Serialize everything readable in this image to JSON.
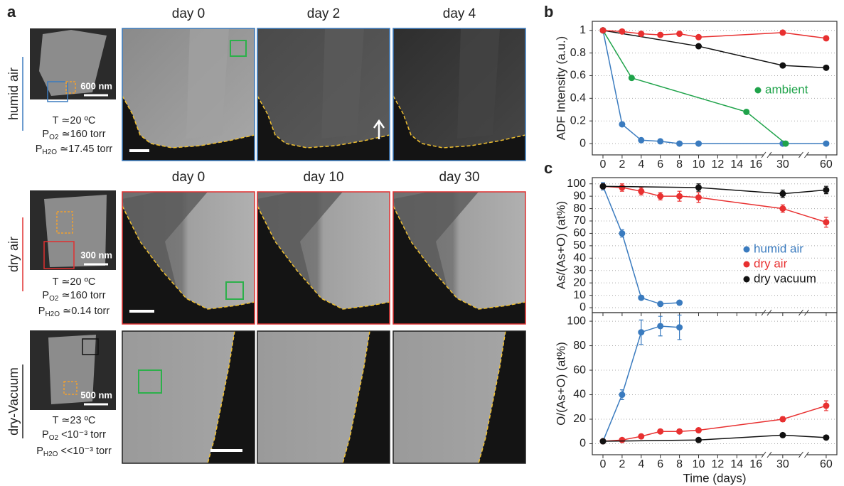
{
  "panel_a": {
    "panel_label": "a",
    "rows": [
      {
        "label": "humid air",
        "color": "#3a7bbf",
        "scale_bar": "600 nm",
        "conditions": [
          {
            "text": "T ≃20 ºC"
          },
          {
            "text": "P",
            "sub": "O2",
            "rest": " ≃160 torr"
          },
          {
            "text": "P",
            "sub": "H2O",
            "rest": " ≃17.45 torr"
          }
        ],
        "days": [
          "day 0",
          "day 2",
          "day 4"
        ]
      },
      {
        "label": "dry air",
        "color": "#e03030",
        "scale_bar": "300 nm",
        "conditions": [
          {
            "text": "T ≃20 ºC"
          },
          {
            "text": "P",
            "sub": "O2",
            "rest": " ≃160 torr"
          },
          {
            "text": "P",
            "sub": "H2O",
            "rest": " ≃0.14 torr"
          }
        ],
        "days": [
          "day 0",
          "day 10",
          "day 30"
        ]
      },
      {
        "label": "dry-Vacuum",
        "color": "#222222",
        "scale_bar": "500 nm",
        "conditions": [
          {
            "text": "T ≃23 ºC"
          },
          {
            "text": "P",
            "sub": "O2",
            "rest": " <10⁻³ torr"
          },
          {
            "text": "P",
            "sub": "H2O",
            "rest": " <<10⁻³ torr"
          }
        ]
      }
    ]
  },
  "chart_data": [
    {
      "type": "line",
      "panel_label": "b",
      "ylabel": "ADF Intensity (a.u.)",
      "xlim": [
        -1.1,
        67
      ],
      "xticks": [
        0,
        2,
        4,
        6,
        8,
        10,
        12,
        14,
        16,
        30,
        60
      ],
      "show_xtick_labels": true,
      "ylim": [
        -0.1,
        1.08
      ],
      "yticks": [
        0,
        0.2,
        0.4,
        0.6,
        0.8,
        1
      ],
      "grid": true,
      "series": [
        {
          "color": "#3a7bbf",
          "x": [
            0,
            2,
            4,
            6,
            8,
            10,
            30,
            60
          ],
          "values": [
            1,
            0.17,
            0.03,
            0.02,
            0,
            0,
            0,
            0
          ]
        },
        {
          "name": "ambient",
          "color": "#1fa34a",
          "x": [
            0,
            3,
            15,
            32
          ],
          "values": [
            1,
            0.58,
            0.28,
            0
          ]
        },
        {
          "color": "#111111",
          "x": [
            0,
            10,
            30,
            60
          ],
          "values": [
            1,
            0.86,
            0.69,
            0.67
          ]
        },
        {
          "color": "#e83030",
          "x": [
            0,
            2,
            4,
            6,
            8,
            10,
            30,
            60
          ],
          "values": [
            1,
            0.99,
            0.97,
            0.96,
            0.97,
            0.94,
            0.98,
            0.93
          ]
        }
      ]
    },
    {
      "type": "line",
      "panel_label": "c",
      "ylabel": "As/(As+O) (at%)",
      "xlim": [
        -1.1,
        67
      ],
      "xticks": [
        0,
        2,
        4,
        6,
        8,
        10,
        12,
        14,
        16,
        30,
        60
      ],
      "show_xtick_labels": false,
      "ylim": [
        -4,
        105
      ],
      "yticks": [
        0,
        10,
        20,
        30,
        40,
        50,
        60,
        70,
        80,
        90,
        100
      ],
      "grid": true,
      "series": [
        {
          "name": "humid air",
          "color": "#3a7bbf",
          "x": [
            0,
            2,
            4,
            6,
            8
          ],
          "values": [
            98,
            60,
            8,
            3,
            4
          ],
          "errors": [
            3,
            3,
            1,
            1,
            1
          ]
        },
        {
          "name": "dry air",
          "color": "#e83030",
          "x": [
            0,
            2,
            4,
            6,
            8,
            10,
            30,
            60
          ],
          "values": [
            98,
            97,
            94,
            90,
            90,
            89,
            80,
            69
          ],
          "errors": [
            2,
            3,
            3,
            3,
            4,
            4,
            3,
            4
          ]
        },
        {
          "name": "dry vacuum",
          "color": "#111111",
          "x": [
            0,
            10,
            30,
            60
          ],
          "values": [
            98,
            97,
            92,
            95
          ],
          "errors": [
            2,
            3,
            3,
            3
          ]
        }
      ]
    },
    {
      "type": "line",
      "ylabel": "O/(As+O) (at%)",
      "xlabel": "Time (days)",
      "xlim": [
        -1.1,
        67
      ],
      "xticks": [
        0,
        2,
        4,
        6,
        8,
        10,
        12,
        14,
        16,
        30,
        60
      ],
      "show_xtick_labels": true,
      "ylim": [
        -9,
        107
      ],
      "yticks": [
        0,
        20,
        40,
        60,
        80,
        100
      ],
      "grid": true,
      "series": [
        {
          "color": "#3a7bbf",
          "x": [
            0,
            2,
            4,
            6,
            8
          ],
          "values": [
            2,
            40,
            91,
            96,
            95
          ],
          "errors": [
            1,
            4,
            10,
            8,
            10
          ]
        },
        {
          "color": "#e83030",
          "x": [
            0,
            2,
            4,
            6,
            8,
            10,
            30,
            60
          ],
          "values": [
            2,
            3,
            6,
            10,
            10,
            11,
            20,
            31
          ],
          "errors": [
            1,
            1,
            1,
            1,
            1,
            1,
            2,
            4
          ]
        },
        {
          "color": "#111111",
          "x": [
            0,
            10,
            30,
            60
          ],
          "values": [
            2,
            3,
            7,
            5
          ],
          "errors": [
            1,
            1,
            1,
            1
          ]
        }
      ]
    }
  ]
}
